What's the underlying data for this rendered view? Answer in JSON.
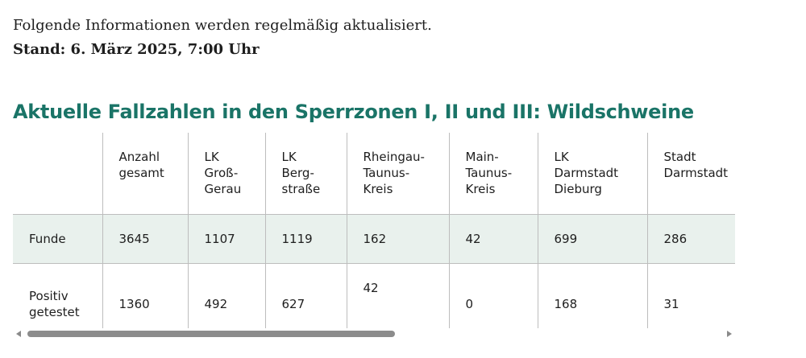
{
  "intro_text": "Folgende Informationen werden regelmäßig aktualisiert.",
  "stand_text": "Stand: 6. März 2025, 7:00 Uhr",
  "heading": "Aktuelle Fallzahlen in den Sperrzonen I, II und III: Wildschweine",
  "colors": {
    "heading": "#1a7467",
    "row_highlight": "#e9f1ed",
    "grid": "#bdbdbd"
  },
  "table": {
    "columns": [
      "",
      "Anzahl\ngesamt",
      "LK\nGroß-\nGerau",
      "LK\nBerg-\nstraße",
      "Rheingau-\nTaunus-\nKreis",
      "Main-\nTaunus-\nKreis",
      "LK\nDarmstadt\nDieburg",
      "Stadt\nDarmstadt"
    ],
    "rows": [
      {
        "label": "Funde",
        "values": [
          "3645",
          "1107",
          "1119",
          "162",
          "42",
          "699",
          "286"
        ]
      },
      {
        "label": "Positiv\ngetestet",
        "values": [
          "1360",
          "492",
          "627",
          "42",
          "0",
          "168",
          "31"
        ]
      }
    ]
  }
}
